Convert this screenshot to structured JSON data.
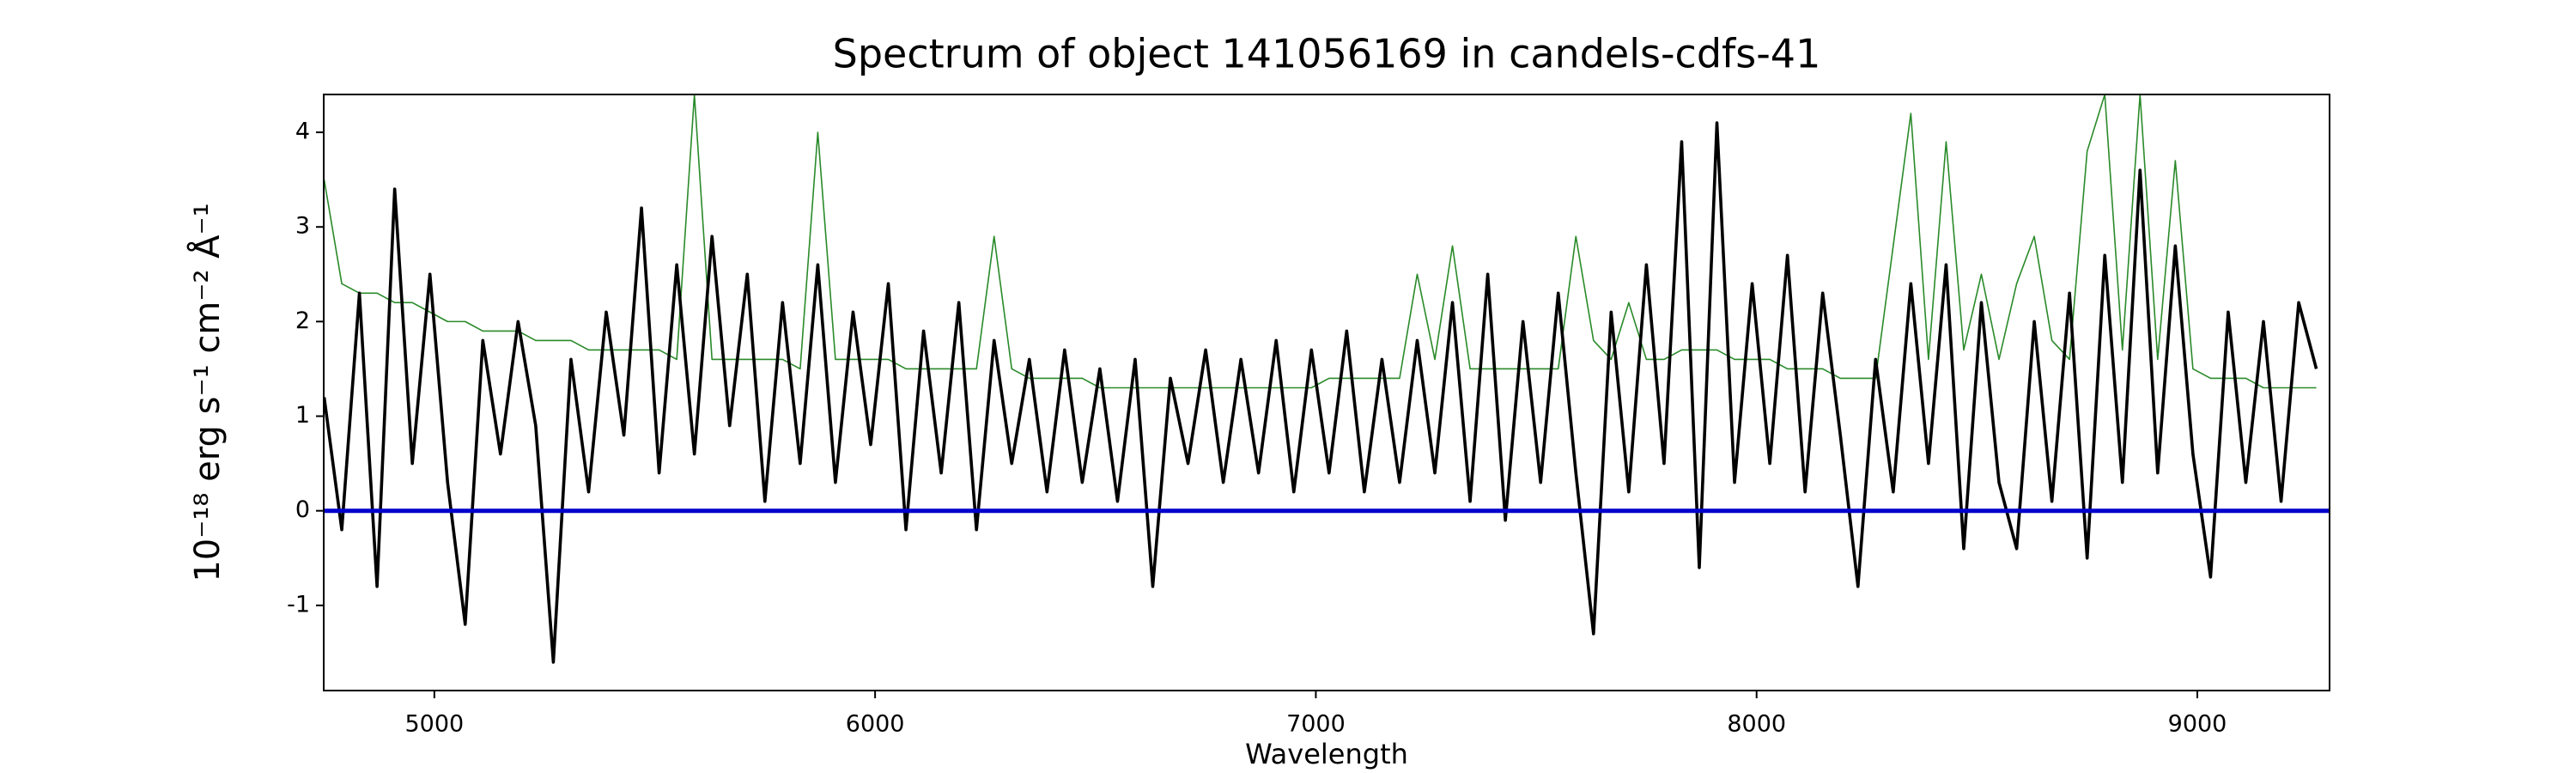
{
  "chart_data": {
    "type": "line",
    "title": "Spectrum of object 141056169 in candels-cdfs-41",
    "x_label": "Wavelength",
    "y_label": "10⁻¹⁸ erg s⁻¹ cm⁻² Å⁻¹",
    "xlim": [
      4749,
      9300
    ],
    "xticks": [
      5000,
      6000,
      7000,
      8000,
      9000
    ],
    "ylim": [
      -1.9,
      4.4
    ],
    "yticks": [
      -1,
      0,
      1,
      2,
      3,
      4
    ],
    "grid": false,
    "x": [
      4750,
      4790,
      4830,
      4870,
      4910,
      4950,
      4990,
      5030,
      5070,
      5110,
      5150,
      5190,
      5230,
      5270,
      5310,
      5350,
      5390,
      5430,
      5470,
      5510,
      5550,
      5590,
      5630,
      5670,
      5710,
      5750,
      5790,
      5830,
      5870,
      5910,
      5950,
      5990,
      6030,
      6070,
      6110,
      6150,
      6190,
      6230,
      6270,
      6310,
      6350,
      6390,
      6430,
      6470,
      6510,
      6550,
      6590,
      6630,
      6670,
      6710,
      6750,
      6790,
      6830,
      6870,
      6910,
      6950,
      6990,
      7030,
      7070,
      7110,
      7150,
      7190,
      7230,
      7270,
      7310,
      7350,
      7390,
      7430,
      7470,
      7510,
      7550,
      7590,
      7630,
      7670,
      7710,
      7750,
      7790,
      7830,
      7870,
      7910,
      7950,
      7990,
      8030,
      8070,
      8110,
      8150,
      8190,
      8230,
      8270,
      8310,
      8350,
      8390,
      8430,
      8470,
      8510,
      8550,
      8590,
      8630,
      8670,
      8710,
      8750,
      8790,
      8830,
      8870,
      8910,
      8950,
      8990,
      9030,
      9070,
      9110,
      9150,
      9190,
      9230,
      9270
    ],
    "series": [
      {
        "color": "#2a8a2a",
        "width": 1.6,
        "values": [
          3.5,
          2.4,
          2.3,
          2.3,
          2.2,
          2.2,
          2.1,
          2.0,
          2.0,
          1.9,
          1.9,
          1.9,
          1.8,
          1.8,
          1.8,
          1.7,
          1.7,
          1.7,
          1.7,
          1.7,
          1.6,
          4.4,
          1.6,
          1.6,
          1.6,
          1.6,
          1.6,
          1.5,
          4.0,
          1.6,
          1.6,
          1.6,
          1.6,
          1.5,
          1.5,
          1.5,
          1.5,
          1.5,
          2.9,
          1.5,
          1.4,
          1.4,
          1.4,
          1.4,
          1.3,
          1.3,
          1.3,
          1.3,
          1.3,
          1.3,
          1.3,
          1.3,
          1.3,
          1.3,
          1.3,
          1.3,
          1.3,
          1.4,
          1.4,
          1.4,
          1.4,
          1.4,
          2.5,
          1.6,
          2.8,
          1.5,
          1.5,
          1.5,
          1.5,
          1.5,
          1.5,
          2.9,
          1.8,
          1.6,
          2.2,
          1.6,
          1.6,
          1.7,
          1.7,
          1.7,
          1.6,
          1.6,
          1.6,
          1.5,
          1.5,
          1.5,
          1.4,
          1.4,
          1.4,
          2.8,
          4.2,
          1.6,
          3.9,
          1.7,
          2.5,
          1.6,
          2.4,
          2.9,
          1.8,
          1.6,
          3.8,
          4.4,
          1.7,
          4.4,
          1.6,
          3.7,
          1.5,
          1.4,
          1.4,
          1.4,
          1.3,
          1.3,
          1.3,
          1.3
        ]
      },
      {
        "color": "#000000",
        "width": 3.6,
        "values": [
          1.2,
          -0.2,
          2.3,
          -0.8,
          3.4,
          0.5,
          2.5,
          0.3,
          -1.2,
          1.8,
          0.6,
          2.0,
          0.9,
          -1.6,
          1.6,
          0.2,
          2.1,
          0.8,
          3.2,
          0.4,
          2.6,
          0.6,
          2.9,
          0.9,
          2.5,
          0.1,
          2.2,
          0.5,
          2.6,
          0.3,
          2.1,
          0.7,
          2.4,
          -0.2,
          1.9,
          0.4,
          2.2,
          -0.2,
          1.8,
          0.5,
          1.6,
          0.2,
          1.7,
          0.3,
          1.5,
          0.1,
          1.6,
          -0.8,
          1.4,
          0.5,
          1.7,
          0.3,
          1.6,
          0.4,
          1.8,
          0.2,
          1.7,
          0.4,
          1.9,
          0.2,
          1.6,
          0.3,
          1.8,
          0.4,
          2.2,
          0.1,
          2.5,
          -0.1,
          2.0,
          0.3,
          2.3,
          0.4,
          -1.3,
          2.1,
          0.2,
          2.6,
          0.5,
          3.9,
          -0.6,
          4.1,
          0.3,
          2.4,
          0.5,
          2.7,
          0.2,
          2.3,
          0.8,
          -0.8,
          1.6,
          0.2,
          2.4,
          0.5,
          2.6,
          -0.4,
          2.2,
          0.3,
          -0.4,
          2.0,
          0.1,
          2.3,
          -0.5,
          2.7,
          0.3,
          3.6,
          0.4,
          2.8,
          0.6,
          -0.7,
          2.1,
          0.3,
          2.0,
          0.1,
          2.2,
          1.5
        ]
      },
      {
        "color": "#0000cc",
        "width": 5,
        "x": [
          4749,
          9300
        ],
        "values": [
          0,
          0
        ]
      }
    ]
  }
}
